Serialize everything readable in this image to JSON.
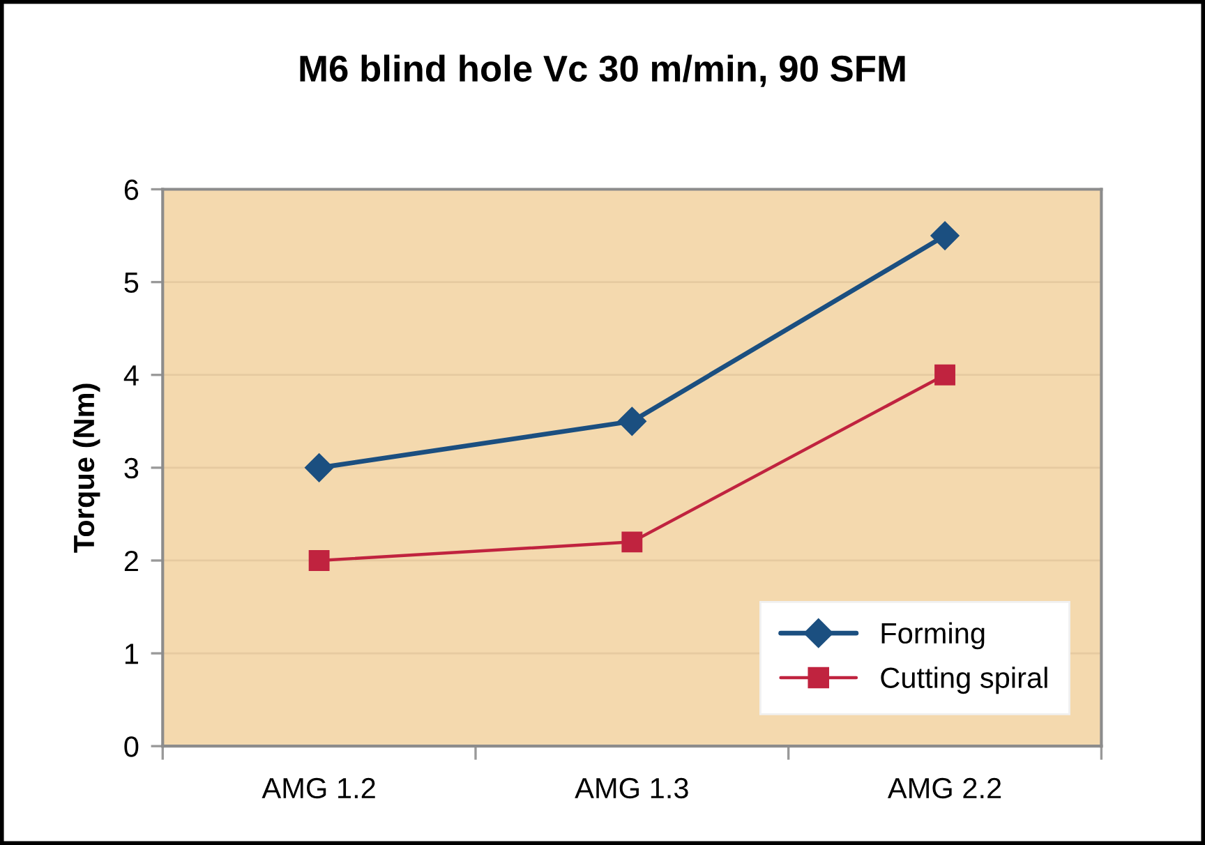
{
  "chart_data": {
    "type": "line",
    "title": "M6 blind hole Vc 30 m/min, 90 SFM",
    "ylabel": "Torque (Nm)",
    "categories": [
      "AMG 1.2",
      "AMG 1.3",
      "AMG 2.2"
    ],
    "series": [
      {
        "name": "Forming",
        "color": "#1b4f80",
        "values": [
          3,
          3.5,
          5.5
        ],
        "marker": "diamond"
      },
      {
        "name": "Cutting spiral",
        "color": "#c0233f",
        "values": [
          2,
          2.2,
          4
        ],
        "marker": "square"
      }
    ],
    "ylim": [
      0,
      6
    ],
    "yticks": [
      0,
      1,
      2,
      3,
      4,
      5,
      6
    ],
    "grid": "y",
    "legend": "bottom right",
    "line_style": "solid"
  }
}
